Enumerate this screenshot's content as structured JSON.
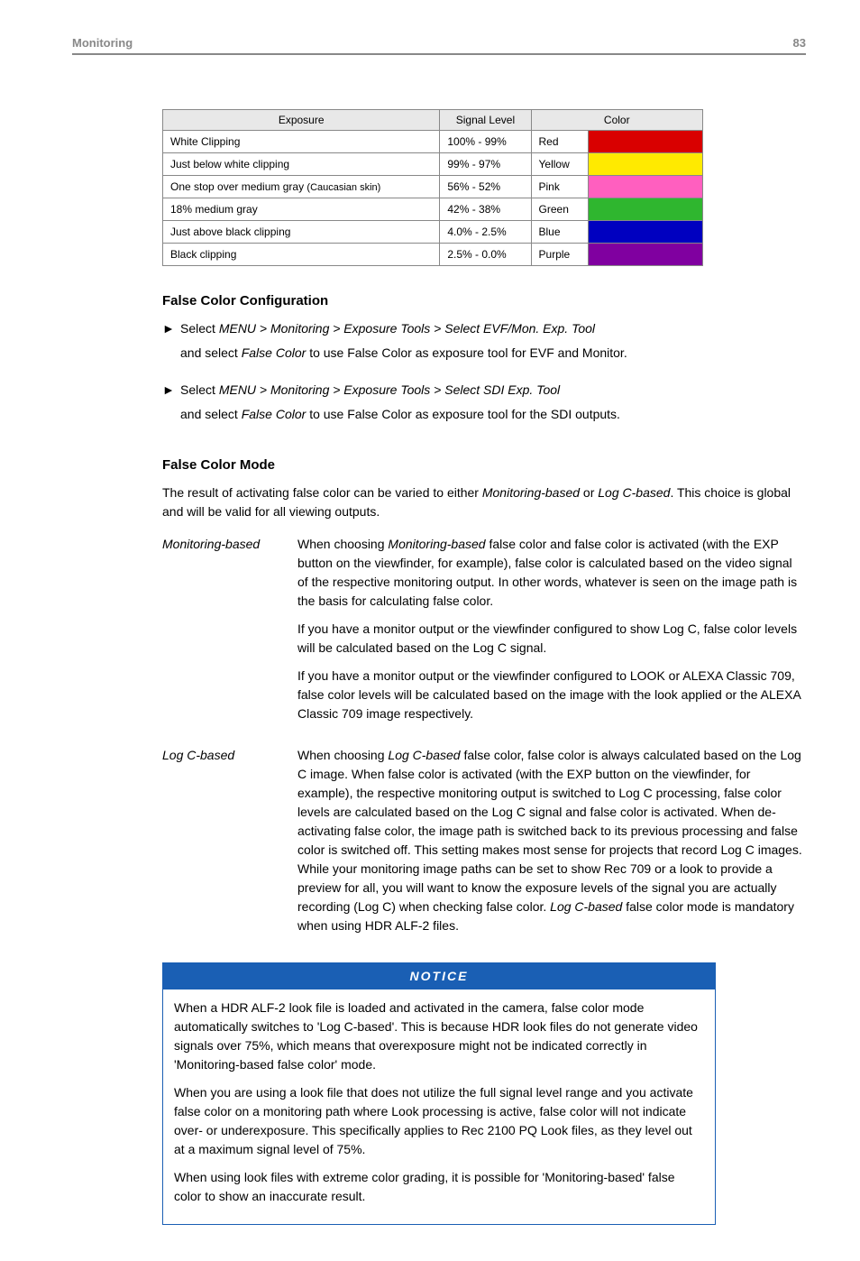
{
  "header": {
    "section": "Monitoring",
    "page_number": "83"
  },
  "exposure_table": {
    "headers": {
      "exposure": "Exposure",
      "signal": "Signal Level",
      "color": "Color"
    },
    "rows": [
      {
        "exposure": "White Clipping",
        "signal": "100% - 99%",
        "color_name": "Red",
        "swatch": "#d90000"
      },
      {
        "exposure": "Just below white clipping",
        "signal": "99% - 97%",
        "color_name": "Yellow",
        "swatch": "#ffea00"
      },
      {
        "exposure": "One stop over medium gray (Caucasian skin)",
        "signal": "56% - 52%",
        "color_name": "Pink",
        "swatch": "#ff5fbf"
      },
      {
        "exposure": "18% medium gray",
        "signal": "42% - 38%",
        "color_name": "Green",
        "swatch": "#2fb62f"
      },
      {
        "exposure": "Just above black clipping",
        "signal": "4.0% - 2.5%",
        "color_name": "Blue",
        "swatch": "#0000c0"
      },
      {
        "exposure": "Black clipping",
        "signal": "2.5% - 0.0%",
        "color_name": "Purple",
        "swatch": "#8000a0"
      }
    ]
  },
  "false_color_config": {
    "title": "False Color Configuration",
    "bullets": [
      {
        "line1_prefix": "Select ",
        "line1_italic": "MENU > Monitoring > Exposure Tools > Select EVF/Mon. Exp. Tool",
        "line2_prefix": "and select ",
        "line2_italic": "False Color",
        "line2_suffix": " to use False Color as exposure tool for EVF and Monitor."
      },
      {
        "line1_prefix": "Select ",
        "line1_italic": "MENU > Monitoring > Exposure Tools > Select SDI Exp. Tool",
        "line2_prefix": "and select ",
        "line2_italic": "False Color",
        "line2_suffix": " to use False Color as exposure tool for the SDI outputs."
      }
    ]
  },
  "false_color_mode": {
    "title": "False Color Mode",
    "intro_prefix": "The result of activating false color can be varied to either ",
    "intro_italic1": "Monitoring-based",
    "intro_mid": " or ",
    "intro_italic2": "Log C-based",
    "intro_suffix": ". This choice is global and will be valid for all viewing outputs.",
    "defs": [
      {
        "term": "Monitoring-based",
        "p1_pre": "When choosing ",
        "p1_it": "Monitoring-based",
        "p1_post": " false color and false color is activated (with the EXP button on the viewfinder, for example), false color is calculated based on the video signal of the respective monitoring output. In other words, whatever is seen on the image path is the basis for calculating false color.",
        "p2": "If you have a monitor output or the viewfinder configured to show Log C, false color levels will be calculated based on the Log C signal.",
        "p3": "If you have a monitor output or the viewfinder configured to LOOK or ALEXA Classic 709, false color levels will be calculated based on the image with the look applied or the ALEXA Classic 709 image respectively."
      },
      {
        "term": "Log C-based",
        "p1_pre": "When choosing ",
        "p1_it": "Log C-based",
        "p1_mid": " false color, false color is always calculated based on the Log C image. When false color is activated (with the EXP button on the viewfinder, for example), the respective monitoring output is switched to Log C processing, false color levels are calculated based on the Log C signal and false color is activated. When de-activating false color, the image path is switched back to its previous processing and false color is switched off. This setting makes most sense for projects that record Log C images. While your monitoring image paths can be set to show Rec 709 or a look to provide a preview for all, you will want to know the exposure levels of the signal you are actually recording (Log C) when checking false color. ",
        "p1_it2": "Log C-based",
        "p1_post": " false color mode is mandatory when using HDR ALF-2 files."
      }
    ]
  },
  "notice": {
    "header": "NOTICE",
    "p1": "When a HDR ALF-2 look file is loaded and activated in the camera, false color mode automatically switches to 'Log C-based'. This is because HDR look files do not generate video signals over 75%, which means that overexposure might not be indicated correctly in 'Monitoring-based false color' mode.",
    "p2": "When you are using a look file that does not utilize the full signal level range and you activate false color on a monitoring path where Look processing is active, false color will not indicate over- or underexposure. This specifically applies to Rec 2100 PQ Look files, as they level out at a maximum signal level of 75%.",
    "p3": "When using look files with extreme color grading, it is possible for 'Monitoring-based' false color to show an inaccurate result."
  }
}
